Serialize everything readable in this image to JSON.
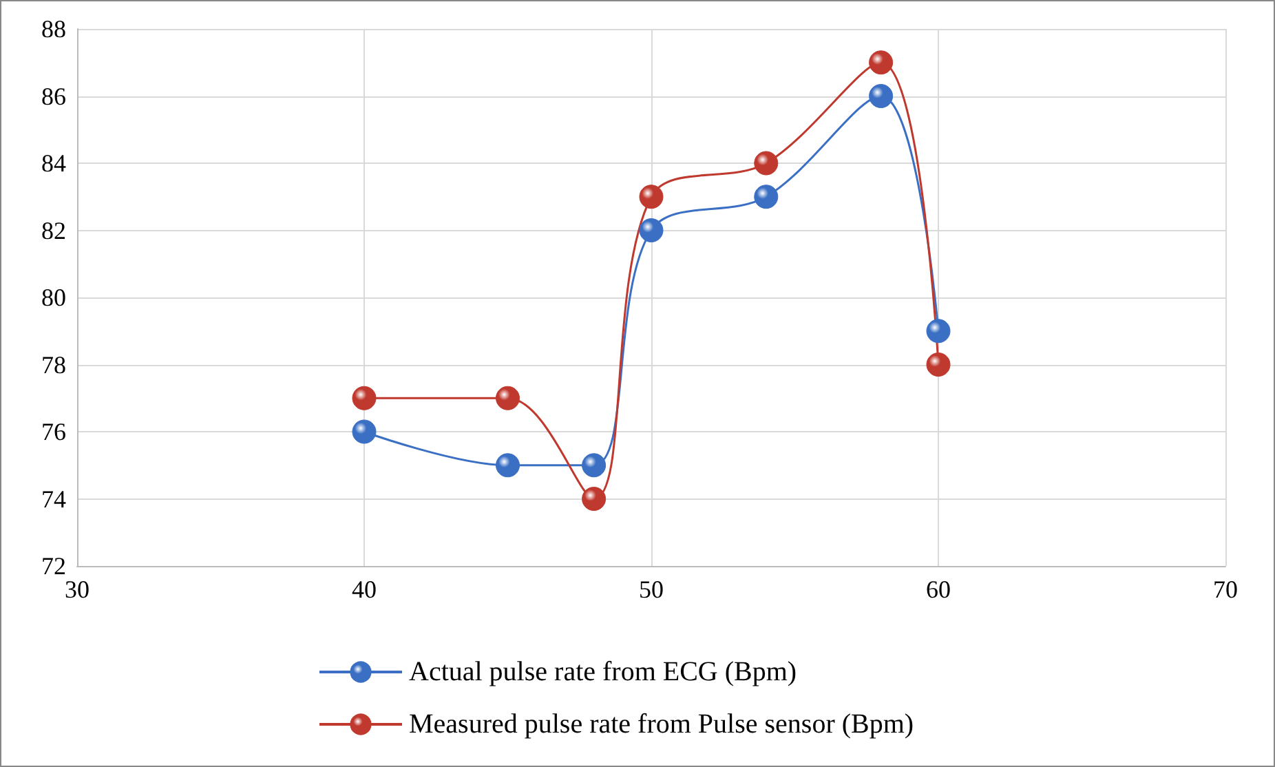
{
  "chart_data": {
    "type": "line",
    "x": [
      40,
      45,
      48,
      50,
      54,
      58,
      60
    ],
    "series": [
      {
        "name": "Actual pulse rate from ECG (Bpm)",
        "color": "#3a6fc4",
        "values": [
          76,
          75,
          75,
          82,
          83,
          86,
          79
        ]
      },
      {
        "name": "Measured pulse rate from Pulse sensor (Bpm)",
        "color": "#c0392f",
        "values": [
          77,
          77,
          74,
          83,
          84,
          87,
          78
        ]
      }
    ],
    "xlim": [
      30,
      70
    ],
    "xticks": [
      30,
      40,
      50,
      60,
      70
    ],
    "ylim": [
      72,
      88
    ],
    "yticks": [
      72,
      74,
      76,
      78,
      80,
      82,
      84,
      86,
      88
    ],
    "grid": true,
    "legend": "bottom",
    "marker": "circle",
    "line_style": "solid"
  }
}
